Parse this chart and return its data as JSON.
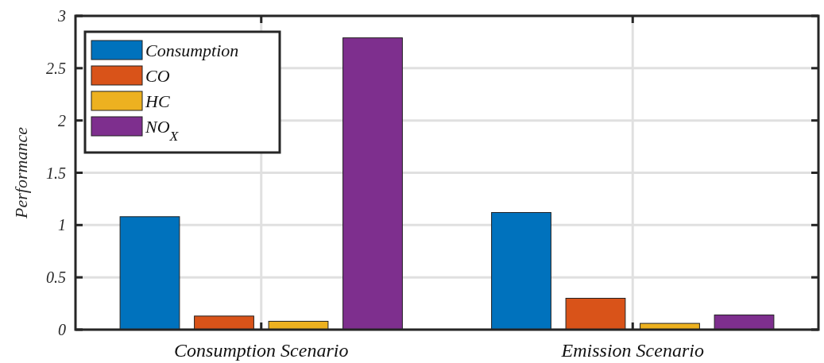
{
  "chart_data": {
    "type": "bar",
    "ylabel": "Performance",
    "categories": [
      "Consumption Scenario",
      "Emission Scenario"
    ],
    "series": [
      {
        "name": "Consumption",
        "color": "#0072bd",
        "values": [
          1.08,
          1.12
        ]
      },
      {
        "name": "CO",
        "color": "#d95319",
        "values": [
          0.13,
          0.3
        ]
      },
      {
        "name": "HC",
        "color": "#edb120",
        "values": [
          0.08,
          0.06
        ]
      },
      {
        "name": "NO$_{X}$",
        "color": "#7e2f8e",
        "values": [
          2.79,
          0.14
        ]
      }
    ],
    "ylim": [
      0,
      3
    ],
    "yticks": [
      0,
      0.5,
      1,
      1.5,
      2,
      2.5,
      3
    ],
    "grid": true,
    "legend": "top left"
  }
}
